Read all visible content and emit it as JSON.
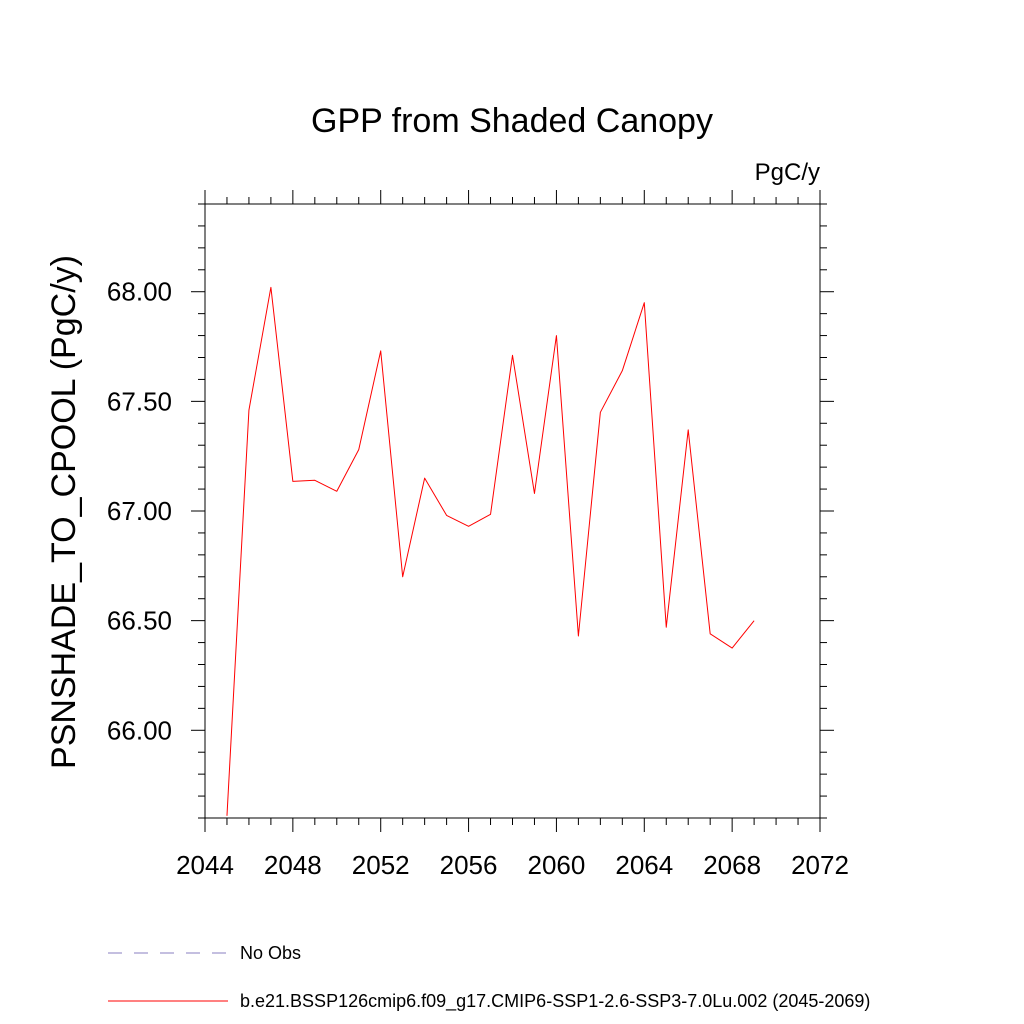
{
  "chart_data": {
    "type": "line",
    "title": "GPP from Shaded Canopy",
    "units_label": "PgC/y",
    "xlabel": "",
    "ylabel": "PSNSHADE_TO_CPOOL  (PgC/y)",
    "xlim": [
      2044,
      2072
    ],
    "ylim": [
      65.6,
      68.4
    ],
    "x_ticks": [
      2044,
      2048,
      2052,
      2056,
      2060,
      2064,
      2068,
      2072
    ],
    "x_tick_labels": [
      "2044",
      "2048",
      "2052",
      "2056",
      "2060",
      "2064",
      "2068",
      "2072"
    ],
    "y_ticks": [
      66.0,
      66.5,
      67.0,
      67.5,
      68.0
    ],
    "y_tick_labels": [
      "66.00",
      "66.50",
      "67.00",
      "67.50",
      "68.00"
    ],
    "grid": false,
    "legend_position": "bottom",
    "series": [
      {
        "name": "b.e21.BSSP126cmip6.f09_g17.CMIP6-SSP1-2.6-SSP3-7.0Lu.002 (2045-2069)",
        "color": "#ff0000",
        "style": "solid",
        "x": [
          2045,
          2046,
          2047,
          2048,
          2049,
          2050,
          2051,
          2052,
          2053,
          2054,
          2055,
          2056,
          2057,
          2058,
          2059,
          2060,
          2061,
          2062,
          2063,
          2064,
          2065,
          2066,
          2067,
          2068,
          2069
        ],
        "values": [
          65.61,
          67.46,
          68.02,
          67.135,
          67.14,
          67.09,
          67.28,
          67.73,
          66.7,
          67.15,
          66.98,
          66.93,
          66.985,
          67.71,
          67.08,
          67.8,
          66.43,
          67.45,
          67.64,
          67.95,
          66.47,
          67.37,
          66.44,
          66.375,
          66.5
        ]
      }
    ],
    "legend": [
      {
        "label": "No Obs",
        "color": "#8a7fc0",
        "style": "dashed"
      },
      {
        "label": "b.e21.BSSP126cmip6.f09_g17.CMIP6-SSP1-2.6-SSP3-7.0Lu.002 (2045-2069)",
        "color": "#ff0000",
        "style": "solid"
      }
    ]
  }
}
